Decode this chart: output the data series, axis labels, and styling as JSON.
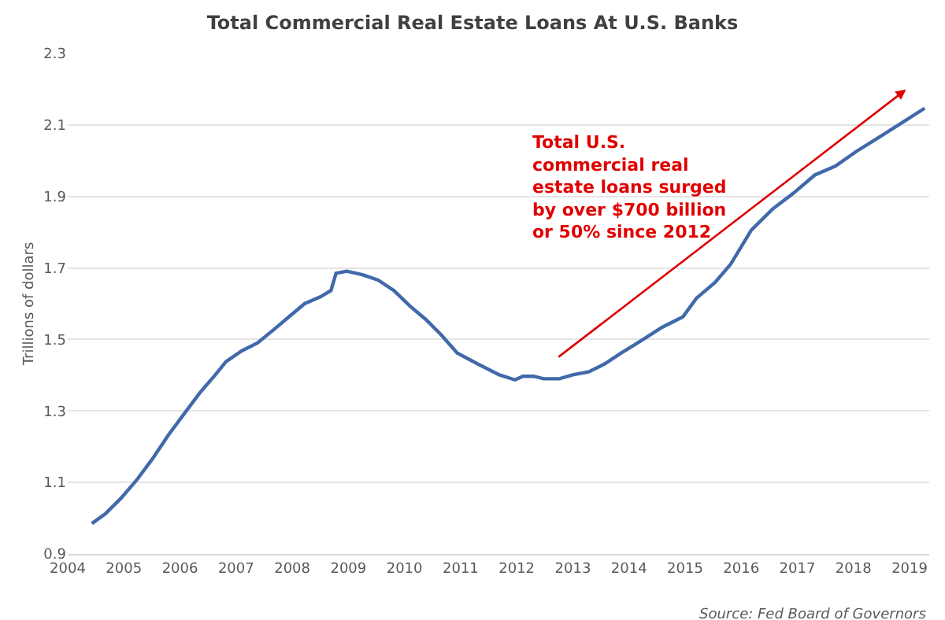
{
  "chart_data": {
    "type": "line",
    "title": "Total Commercial Real Estate Loans At U.S. Banks",
    "ylabel": "Trillions of dollars",
    "x": [
      2004.43,
      2004.67,
      2004.95,
      2005.23,
      2005.51,
      2005.79,
      2006.07,
      2006.35,
      2006.63,
      2006.82,
      2007.1,
      2007.38,
      2007.66,
      2007.94,
      2008.22,
      2008.5,
      2008.69,
      2008.78,
      2008.97,
      2009.25,
      2009.53,
      2009.81,
      2010.1,
      2010.38,
      2010.66,
      2010.94,
      2011.31,
      2011.69,
      2011.97,
      2012.11,
      2012.3,
      2012.48,
      2012.76,
      2013.0,
      2013.28,
      2013.56,
      2013.84,
      2014.22,
      2014.59,
      2014.96,
      2015.2,
      2015.53,
      2015.81,
      2016.18,
      2016.56,
      2016.93,
      2017.31,
      2017.68,
      2018.05,
      2018.43,
      2018.8,
      2019.27
    ],
    "series": [
      {
        "color": "#4169aa",
        "values": [
          0.985,
          1.012,
          1.056,
          1.107,
          1.166,
          1.232,
          1.291,
          1.35,
          1.401,
          1.438,
          1.468,
          1.49,
          1.526,
          1.563,
          1.6,
          1.619,
          1.637,
          1.685,
          1.691,
          1.681,
          1.666,
          1.637,
          1.593,
          1.556,
          1.512,
          1.462,
          1.431,
          1.401,
          1.387,
          1.397,
          1.397,
          1.39,
          1.39,
          1.401,
          1.409,
          1.431,
          1.46,
          1.497,
          1.534,
          1.563,
          1.615,
          1.659,
          1.71,
          1.806,
          1.865,
          1.909,
          1.96,
          1.985,
          2.026,
          2.063,
          2.1,
          2.147
        ]
      }
    ],
    "xlim": [
      2004,
      2019.35
    ],
    "xticks": [
      2004,
      2005,
      2006,
      2007,
      2008,
      2009,
      2010,
      2011,
      2012,
      2013,
      2014,
      2015,
      2016,
      2017,
      2018,
      2019
    ],
    "ylim": [
      0.9,
      2.3
    ],
    "yticks": [
      0.9,
      1.1,
      1.3,
      1.5,
      1.7,
      1.9,
      2.1,
      2.3
    ],
    "grid": "y",
    "marker": "none",
    "line_style": "solid",
    "annotations": [
      "Total U.S.\ncommercial real\nestate loans surged\nby over $700 billion\nor 50% since 2012",
      "Source: Fed Board of Governors"
    ]
  }
}
